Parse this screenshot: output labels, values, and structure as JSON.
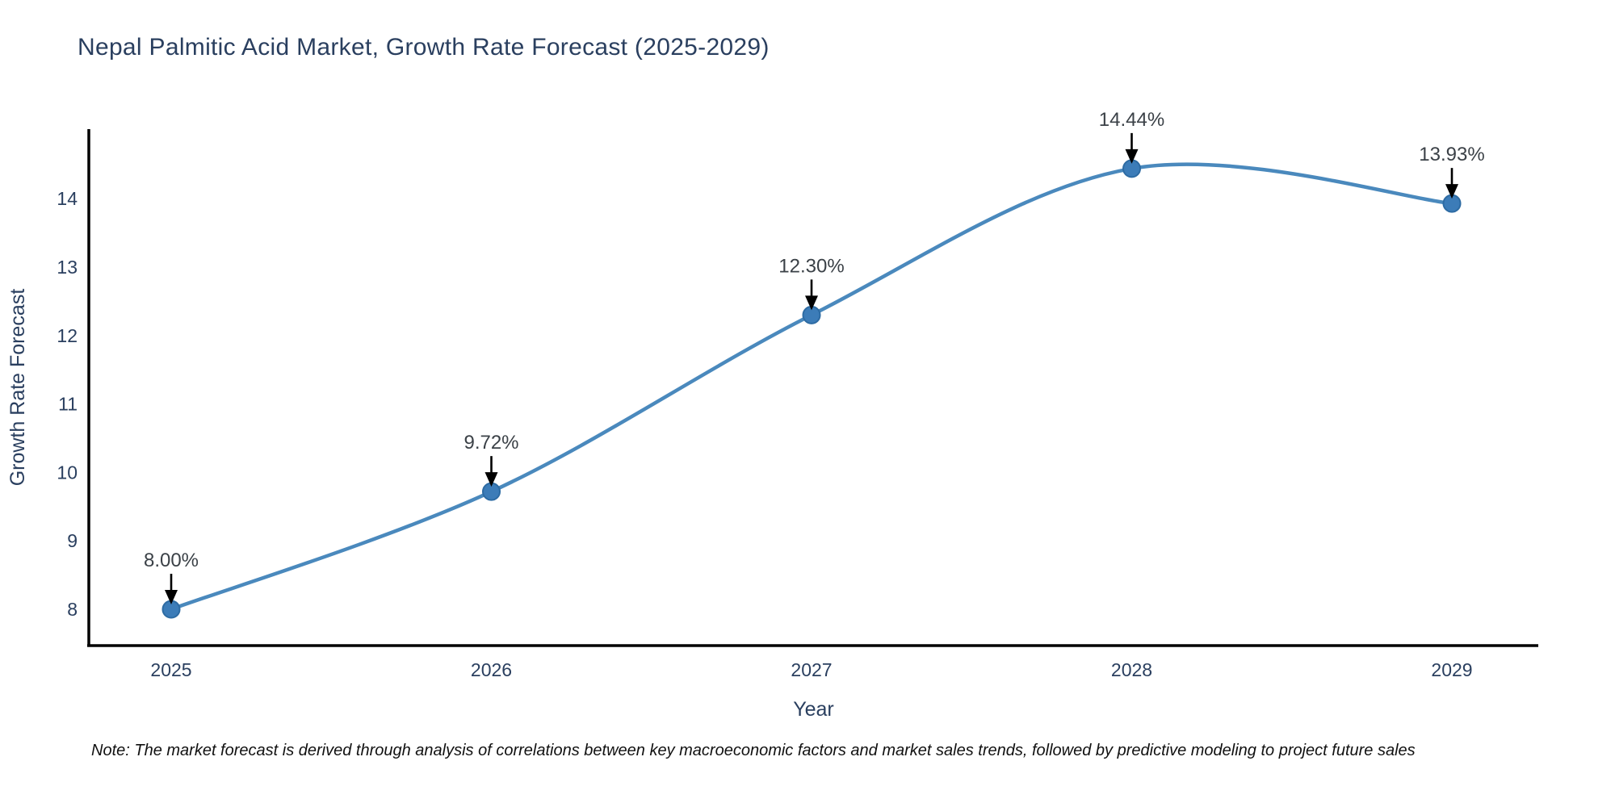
{
  "chart_data": {
    "type": "line",
    "title": "Nepal Palmitic Acid Market, Growth Rate Forecast (2025-2029)",
    "xlabel": "Year",
    "ylabel": "Growth Rate Forecast",
    "x": [
      2025,
      2026,
      2027,
      2028,
      2029
    ],
    "values": [
      8.0,
      9.72,
      12.3,
      14.44,
      13.93
    ],
    "point_labels": [
      "8.00%",
      "9.72%",
      "12.30%",
      "14.44%",
      "13.93%"
    ],
    "yticks": [
      8,
      9,
      10,
      11,
      12,
      13,
      14
    ],
    "xlim": [
      2024.74,
      2029.27
    ],
    "ylim": [
      7.47,
      15.05
    ],
    "grid": false,
    "legend": "none",
    "line_shape": "spline",
    "colors": {
      "line": "#4a89bd",
      "marker_fill": "#3c7cb8",
      "marker_edge": "#2d6ba3",
      "axis": "#000000",
      "tick_font": "#2a3f5f",
      "title_font": "#2a3f5f",
      "annotation_font": "#3b4147",
      "arrow": "#000000"
    },
    "note": "Note: The market forecast is derived through analysis of correlations between key macroeconomic factors and market sales trends, followed by predictive modeling to project future sales"
  }
}
